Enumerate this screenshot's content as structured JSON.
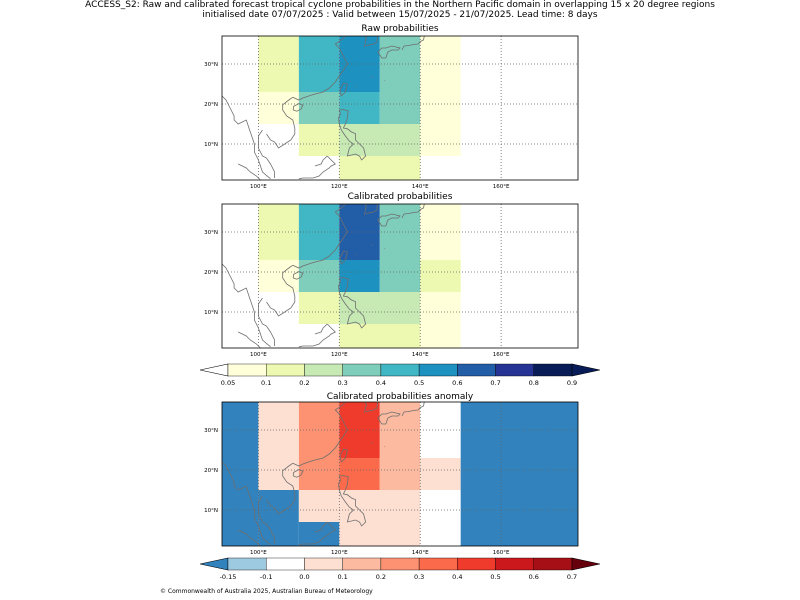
{
  "header": {
    "title_line1": "ACCESS_S2: Raw and calibrated forecast tropical cyclone probabilities in the Northern Pacific domain in overlapping 15 x 20 degree regions",
    "title_line2": "initialised date 07/07/2025 :  Valid between 15/07/2025 - 21/07/2025. Lead time: 8 days"
  },
  "map_extent": {
    "lon": [
      91,
      179
    ],
    "lat": [
      1,
      37
    ]
  },
  "panels": [
    {
      "title": "Raw probabilities",
      "lon_ticks": [
        "100°E",
        "120°E",
        "140°E",
        "160°E"
      ],
      "lat_ticks": [
        "30°N",
        "20°N",
        "10°N"
      ],
      "cells": [
        {
          "lon": [
            100,
            110
          ],
          "lat": [
            23,
            37
          ],
          "value": 0.15
        },
        {
          "lon": [
            110,
            120
          ],
          "lat": [
            23,
            37
          ],
          "value": 0.45
        },
        {
          "lon": [
            120,
            130
          ],
          "lat": [
            23,
            37
          ],
          "value": 0.5
        },
        {
          "lon": [
            130,
            140
          ],
          "lat": [
            23,
            37
          ],
          "value": 0.35
        },
        {
          "lon": [
            140,
            150
          ],
          "lat": [
            23,
            37
          ],
          "value": 0.07
        },
        {
          "lon": [
            100,
            110
          ],
          "lat": [
            15,
            23
          ],
          "value": 0.07
        },
        {
          "lon": [
            110,
            120
          ],
          "lat": [
            15,
            23
          ],
          "value": 0.35
        },
        {
          "lon": [
            120,
            130
          ],
          "lat": [
            15,
            23
          ],
          "value": 0.45
        },
        {
          "lon": [
            130,
            140
          ],
          "lat": [
            15,
            23
          ],
          "value": 0.35
        },
        {
          "lon": [
            140,
            150
          ],
          "lat": [
            15,
            23
          ],
          "value": 0.07
        },
        {
          "lon": [
            110,
            120
          ],
          "lat": [
            7,
            15
          ],
          "value": 0.15
        },
        {
          "lon": [
            120,
            140
          ],
          "lat": [
            7,
            15
          ],
          "value": 0.25
        },
        {
          "lon": [
            140,
            150
          ],
          "lat": [
            7,
            15
          ],
          "value": 0.07
        },
        {
          "lon": [
            120,
            140
          ],
          "lat": [
            1,
            7
          ],
          "value": 0.15
        }
      ]
    },
    {
      "title": "Calibrated probabilities",
      "lon_ticks": [
        "100°E",
        "120°E",
        "140°E",
        "160°E"
      ],
      "lat_ticks": [
        "30°N",
        "20°N",
        "10°N"
      ],
      "cells": [
        {
          "lon": [
            100,
            110
          ],
          "lat": [
            23,
            37
          ],
          "value": 0.15
        },
        {
          "lon": [
            110,
            120
          ],
          "lat": [
            23,
            37
          ],
          "value": 0.45
        },
        {
          "lon": [
            120,
            130
          ],
          "lat": [
            23,
            37
          ],
          "value": 0.65
        },
        {
          "lon": [
            130,
            140
          ],
          "lat": [
            23,
            37
          ],
          "value": 0.35
        },
        {
          "lon": [
            140,
            150
          ],
          "lat": [
            23,
            37
          ],
          "value": 0.07
        },
        {
          "lon": [
            100,
            110
          ],
          "lat": [
            15,
            23
          ],
          "value": 0.07
        },
        {
          "lon": [
            110,
            120
          ],
          "lat": [
            15,
            23
          ],
          "value": 0.35
        },
        {
          "lon": [
            120,
            130
          ],
          "lat": [
            15,
            23
          ],
          "value": 0.5
        },
        {
          "lon": [
            130,
            140
          ],
          "lat": [
            15,
            23
          ],
          "value": 0.35
        },
        {
          "lon": [
            140,
            150
          ],
          "lat": [
            15,
            23
          ],
          "value": 0.15
        },
        {
          "lon": [
            110,
            120
          ],
          "lat": [
            7,
            15
          ],
          "value": 0.15
        },
        {
          "lon": [
            120,
            140
          ],
          "lat": [
            7,
            15
          ],
          "value": 0.25
        },
        {
          "lon": [
            140,
            150
          ],
          "lat": [
            7,
            15
          ],
          "value": 0.07
        },
        {
          "lon": [
            120,
            140
          ],
          "lat": [
            1,
            7
          ],
          "value": 0.15
        },
        {
          "lon": [
            140,
            150
          ],
          "lat": [
            1,
            7
          ],
          "value": 0.07
        }
      ]
    },
    {
      "title": "Calibrated probabilities anomaly",
      "lon_ticks": [
        "100°E",
        "120°E",
        "140°E",
        "160°E"
      ],
      "lat_ticks": [
        "30°N",
        "20°N",
        "10°N"
      ],
      "cells": [
        {
          "lon": [
            91,
            100
          ],
          "lat": [
            1,
            37
          ],
          "value": -0.2
        },
        {
          "lon": [
            100,
            110
          ],
          "lat": [
            15,
            37
          ],
          "value": 0.0
        },
        {
          "lon": [
            100,
            110
          ],
          "lat": [
            1,
            15
          ],
          "value": -0.2
        },
        {
          "lon": [
            110,
            120
          ],
          "lat": [
            15,
            37
          ],
          "value": 0.25
        },
        {
          "lon": [
            110,
            120
          ],
          "lat": [
            7,
            15
          ],
          "value": 0.0
        },
        {
          "lon": [
            110,
            120
          ],
          "lat": [
            1,
            7
          ],
          "value": -0.2
        },
        {
          "lon": [
            120,
            130
          ],
          "lat": [
            23,
            37
          ],
          "value": 0.45
        },
        {
          "lon": [
            120,
            130
          ],
          "lat": [
            15,
            23
          ],
          "value": 0.35
        },
        {
          "lon": [
            130,
            140
          ],
          "lat": [
            15,
            37
          ],
          "value": 0.15
        },
        {
          "lon": [
            120,
            140
          ],
          "lat": [
            7,
            15
          ],
          "value": 0.05
        },
        {
          "lon": [
            120,
            140
          ],
          "lat": [
            1,
            7
          ],
          "value": 0.0
        },
        {
          "lon": [
            140,
            150
          ],
          "lat": [
            23,
            37
          ],
          "value": -0.1
        },
        {
          "lon": [
            140,
            150
          ],
          "lat": [
            15,
            23
          ],
          "value": 0.0
        },
        {
          "lon": [
            140,
            150
          ],
          "lat": [
            1,
            15
          ],
          "value": -0.1
        },
        {
          "lon": [
            150,
            179
          ],
          "lat": [
            1,
            37
          ],
          "value": -0.2
        }
      ]
    }
  ],
  "colorbars": [
    {
      "name": "probability",
      "labels": [
        "0.05",
        "0.1",
        "0.2",
        "0.3",
        "0.4",
        "0.5",
        "0.6",
        "0.7",
        "0.8",
        "0.9"
      ],
      "colors": [
        "#ffffd9",
        "#edf8b1",
        "#c7e9b4",
        "#7fcdbb",
        "#41b6c4",
        "#1d91c0",
        "#225ea8",
        "#253494",
        "#081d58"
      ],
      "under_color": "#ffffff",
      "over_color": "#081d58"
    },
    {
      "name": "anomaly",
      "labels": [
        "-0.15",
        "-0.1",
        "0.0",
        "0.1",
        "0.2",
        "0.3",
        "0.4",
        "0.5",
        "0.6",
        "0.7"
      ],
      "colors": [
        "#9ecae1",
        "#ffffff",
        "#fee0d2",
        "#fcbba1",
        "#fc9272",
        "#fb6a4a",
        "#ef3b2c",
        "#cb181d",
        "#a50f15"
      ],
      "under_color": "#3182bd",
      "over_color": "#67000d"
    }
  ],
  "footer": {
    "copyright": "© Commonwealth of Australia 2025, Australian Bureau of Meteorology"
  }
}
